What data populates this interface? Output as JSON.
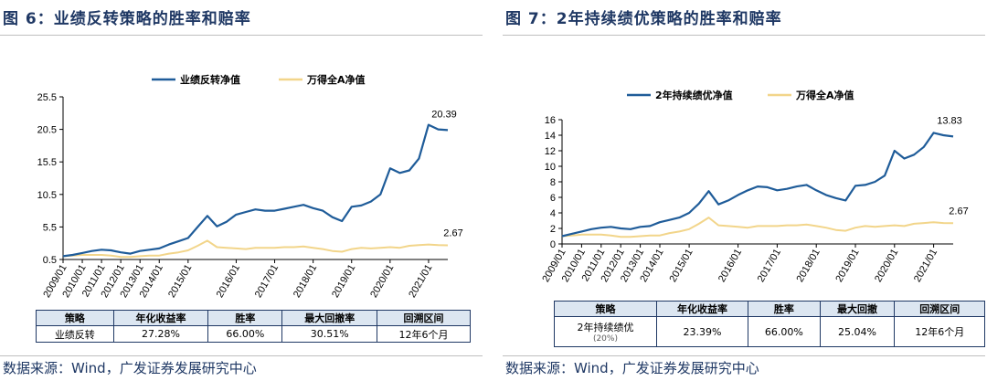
{
  "left": {
    "figure_title": "图 6：业绩反转策略的胜率和赔率",
    "source": "数据来源：Wind，广发证券发展研究中心",
    "table": {
      "headers": [
        "策略",
        "年化收益率",
        "胜率",
        "最大回撤率",
        "回溯区间"
      ],
      "row": [
        "业绩反转",
        "27.28%",
        "66.00%",
        "30.51%",
        "12年6个月"
      ]
    }
  },
  "right": {
    "figure_title": "图 7：2年持续绩优策略的胜率和赔率",
    "source": "数据来源：Wind，广发证券发展研究中心",
    "table": {
      "headers": [
        "策略",
        "年化收益率",
        "胜率",
        "最大回撤",
        "回溯区间"
      ],
      "row": [
        "2年持续绩优",
        "23.39%",
        "66.00%",
        "25.04%",
        "12年6个月"
      ],
      "row_sub": "(20%)"
    }
  },
  "colors": {
    "series_main": "#1f5c99",
    "series_bench": "#f2d58a",
    "title": "#1f3864"
  },
  "chart_data": [
    {
      "type": "line",
      "title": "图 6：业绩反转策略的胜率和赔率",
      "x": [
        "2009/01",
        "2009/07",
        "2010/01",
        "2010/07",
        "2011/01",
        "2011/07",
        "2012/01",
        "2012/07",
        "2013/01",
        "2013/07",
        "2014/01",
        "2014/07",
        "2014/10",
        "2015/01",
        "2015/04",
        "2015/06",
        "2015/08",
        "2015/10",
        "2016/01",
        "2016/04",
        "2016/07",
        "2016/10",
        "2017/01",
        "2017/04",
        "2017/07",
        "2017/10",
        "2018/01",
        "2018/04",
        "2018/07",
        "2018/10",
        "2019/01",
        "2019/04",
        "2019/07",
        "2019/10",
        "2020/01",
        "2020/04",
        "2020/07",
        "2020/10",
        "2021/01",
        "2021/04",
        "2021/08"
      ],
      "xticks": [
        "2009/01",
        "2010/01",
        "2011/01",
        "2012/01",
        "2013/01",
        "2014/01",
        "2015/01",
        "2016/01",
        "2017/01",
        "2018/01",
        "2019/01",
        "2020/01",
        "2021/01"
      ],
      "ylim": [
        0.5,
        25.5
      ],
      "yticks": [
        0.5,
        5.5,
        10.5,
        15.5,
        20.5,
        25.5
      ],
      "ytick_labels": [
        "0.5",
        "5.5",
        "10.5",
        "15.5",
        "20.5",
        "25.5"
      ],
      "legend": "top",
      "series": [
        {
          "name": "业绩反转净值",
          "values": [
            1.0,
            1.2,
            1.5,
            1.8,
            2.0,
            1.9,
            1.6,
            1.4,
            1.8,
            2.0,
            2.2,
            2.8,
            3.3,
            3.8,
            5.5,
            7.2,
            5.6,
            6.3,
            7.4,
            7.8,
            8.2,
            8.0,
            8.0,
            8.3,
            8.6,
            8.9,
            8.4,
            8.0,
            7.0,
            6.4,
            8.6,
            8.8,
            9.4,
            10.5,
            14.5,
            13.8,
            14.2,
            16.0,
            21.2,
            20.5,
            20.39
          ]
        },
        {
          "name": "万得全A净值",
          "values": [
            1.0,
            1.1,
            1.2,
            1.2,
            1.2,
            1.1,
            0.9,
            0.9,
            1.0,
            1.1,
            1.1,
            1.4,
            1.6,
            1.9,
            2.6,
            3.4,
            2.4,
            2.3,
            2.2,
            2.1,
            2.3,
            2.3,
            2.3,
            2.4,
            2.4,
            2.5,
            2.3,
            2.1,
            1.8,
            1.7,
            2.1,
            2.3,
            2.2,
            2.3,
            2.4,
            2.3,
            2.6,
            2.7,
            2.8,
            2.7,
            2.67
          ]
        }
      ],
      "annotations": [
        "20.39",
        "2.67"
      ]
    },
    {
      "type": "line",
      "title": "图 7：2年持续绩优策略的胜率和赔率",
      "x": [
        "2009/01",
        "2009/07",
        "2010/01",
        "2010/07",
        "2011/01",
        "2011/07",
        "2012/01",
        "2012/07",
        "2013/01",
        "2013/07",
        "2014/01",
        "2014/07",
        "2014/10",
        "2015/01",
        "2015/04",
        "2015/06",
        "2015/08",
        "2015/10",
        "2016/01",
        "2016/04",
        "2016/07",
        "2016/10",
        "2017/01",
        "2017/04",
        "2017/07",
        "2017/10",
        "2018/01",
        "2018/04",
        "2018/07",
        "2018/10",
        "2019/01",
        "2019/04",
        "2019/07",
        "2019/10",
        "2020/01",
        "2020/04",
        "2020/07",
        "2020/10",
        "2021/01",
        "2021/04",
        "2021/08"
      ],
      "xticks": [
        "2009/01",
        "2010/01",
        "2011/01",
        "2012/01",
        "2013/01",
        "2014/01",
        "2015/01",
        "2016/01",
        "2017/01",
        "2018/01",
        "2019/01",
        "2020/01",
        "2021/01"
      ],
      "ylim": [
        0,
        16
      ],
      "yticks": [
        0,
        2,
        4,
        6,
        8,
        10,
        12,
        14,
        16
      ],
      "ytick_labels": [
        "0",
        "2",
        "4",
        "6",
        "8",
        "10",
        "12",
        "14",
        "16"
      ],
      "legend": "top",
      "series": [
        {
          "name": "2年持续绩优净值",
          "values": [
            1.0,
            1.3,
            1.6,
            1.9,
            2.1,
            2.2,
            2.0,
            1.9,
            2.2,
            2.3,
            2.8,
            3.1,
            3.4,
            4.0,
            5.2,
            6.8,
            5.1,
            5.6,
            6.3,
            6.9,
            7.4,
            7.3,
            6.9,
            7.1,
            7.4,
            7.6,
            6.9,
            6.3,
            5.9,
            5.6,
            7.5,
            7.6,
            8.0,
            8.8,
            12.0,
            11.0,
            11.5,
            12.5,
            14.3,
            14.0,
            13.83
          ]
        },
        {
          "name": "万得全A净值",
          "values": [
            1.0,
            1.1,
            1.2,
            1.2,
            1.2,
            1.1,
            0.9,
            0.9,
            1.0,
            1.1,
            1.1,
            1.4,
            1.6,
            1.9,
            2.6,
            3.4,
            2.4,
            2.3,
            2.2,
            2.1,
            2.3,
            2.3,
            2.3,
            2.4,
            2.4,
            2.5,
            2.3,
            2.1,
            1.8,
            1.7,
            2.1,
            2.3,
            2.2,
            2.3,
            2.4,
            2.3,
            2.6,
            2.7,
            2.8,
            2.7,
            2.67
          ]
        }
      ],
      "annotations": [
        "13.83",
        "2.67"
      ]
    }
  ]
}
